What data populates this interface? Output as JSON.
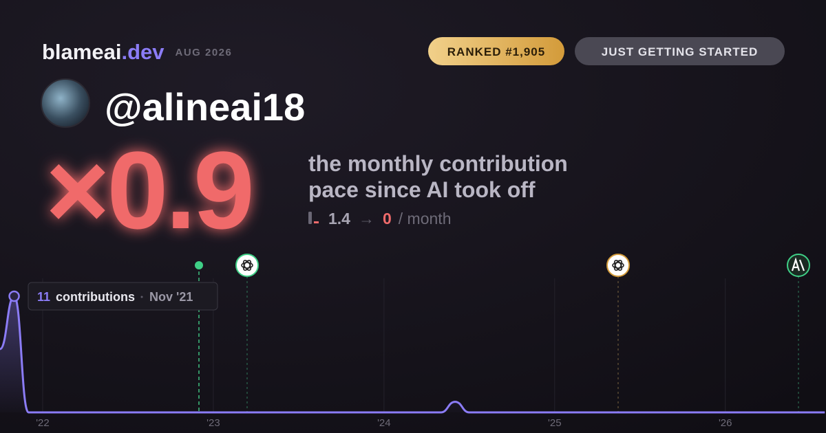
{
  "header": {
    "brand": "blameai",
    "brand_suffix": ".dev",
    "date": "AUG 2026"
  },
  "badges": [
    "RANKED #1,905",
    "JUST GETTING STARTED"
  ],
  "profile": {
    "username": "@alineai18"
  },
  "headline": {
    "multiplier": "×0.9",
    "description": [
      "the monthly contribution",
      "pace since AI took off"
    ],
    "pace": {
      "before": "1.4",
      "arrow": "→",
      "after": "0",
      "unit": "/ month"
    }
  },
  "tooltip": {
    "unit": "contributions",
    "date": "Nov '21"
  },
  "chart_data": {
    "type": "line",
    "color": "#8b7cf6",
    "x": [
      2021.75,
      2021.833,
      2021.917,
      2024.333,
      2024.417,
      2024.5,
      2026.583
    ],
    "values": [
      6,
      11,
      0,
      0,
      1,
      0,
      0
    ],
    "xlim": [
      2021.75,
      2026.59
    ],
    "ylim": [
      0,
      11
    ],
    "xticks": [
      {
        "value": 2022,
        "label": "'22"
      },
      {
        "value": 2023,
        "label": "'23"
      },
      {
        "value": 2024,
        "label": "'24"
      },
      {
        "value": 2025,
        "label": "'25"
      },
      {
        "value": 2026,
        "label": "'26"
      }
    ],
    "grid": true
  }
}
